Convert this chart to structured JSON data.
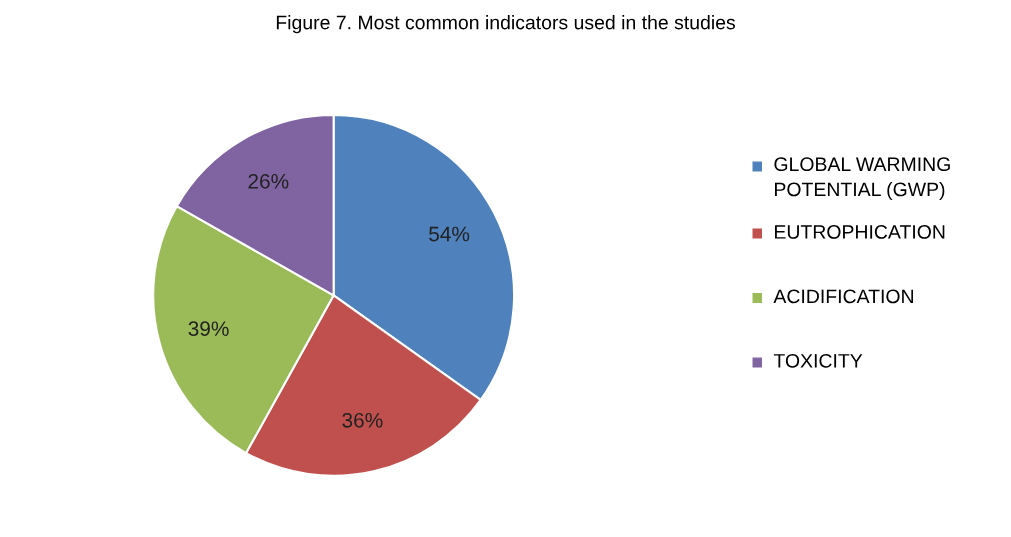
{
  "chart_data": {
    "type": "pie",
    "title": "Figure 7. Most common indicators used in the studies",
    "categories": [
      "GLOBAL WARMING POTENTIAL (GWP)",
      "EUTROPHICATION",
      "ACIDIFICATION",
      "TOXICITY"
    ],
    "values": [
      54,
      36,
      39,
      26
    ],
    "value_labels": [
      "54%",
      "36%",
      "39%",
      "26%"
    ],
    "colors": [
      "#4f81bd",
      "#c0504d",
      "#9bbb59",
      "#8064a2"
    ],
    "legend": "right"
  }
}
